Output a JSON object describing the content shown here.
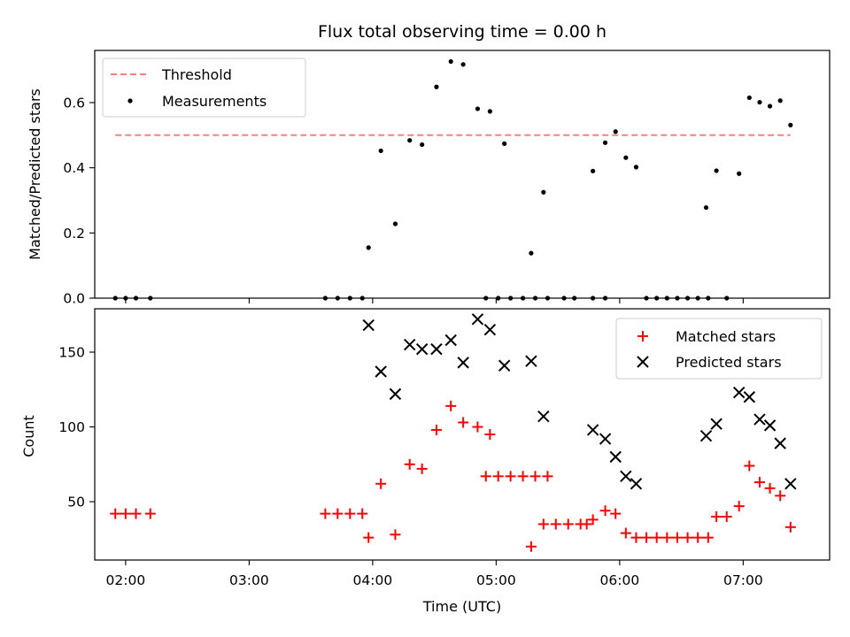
{
  "chart_data": [
    {
      "type": "scatter",
      "title": "Flux total observing time = 0.00 h",
      "xlabel": "",
      "ylabel": "Matched/Predicted stars",
      "ylim": [
        0,
        0.76
      ],
      "yticks": [
        "0.0",
        "0.2",
        "0.4",
        "0.6"
      ],
      "ytick_values": [
        0,
        0.2,
        0.4,
        0.6
      ],
      "xlim": [
        "01:45",
        "07:42"
      ],
      "threshold": {
        "name": "Threshold",
        "value": 0.5,
        "x": [
          "01:55",
          "07:23"
        ],
        "color": "#ff7f7f",
        "style": "dashed"
      },
      "series": [
        {
          "name": "Measurements",
          "color": "#000000",
          "marker": "dot",
          "points": [
            [
              "01:55",
              0
            ],
            [
              "02:00",
              0
            ],
            [
              "02:05",
              0
            ],
            [
              "02:12",
              0
            ],
            [
              "03:37",
              0
            ],
            [
              "03:43",
              0
            ],
            [
              "03:49",
              0
            ],
            [
              "03:55",
              0
            ],
            [
              "03:58",
              0.155
            ],
            [
              "04:04",
              0.452
            ],
            [
              "04:11",
              0.228
            ],
            [
              "04:18",
              0.484
            ],
            [
              "04:24",
              0.471
            ],
            [
              "04:31",
              0.648
            ],
            [
              "04:38",
              0.726
            ],
            [
              "04:44",
              0.717
            ],
            [
              "04:51",
              0.581
            ],
            [
              "04:57",
              0.573
            ],
            [
              "05:04",
              0.474
            ],
            [
              "04:55",
              0
            ],
            [
              "05:01",
              0
            ],
            [
              "05:07",
              0
            ],
            [
              "05:13",
              0
            ],
            [
              "05:19",
              0
            ],
            [
              "05:25",
              0
            ],
            [
              "05:17",
              0.138
            ],
            [
              "05:23",
              0.325
            ],
            [
              "05:33",
              0
            ],
            [
              "05:38",
              0
            ],
            [
              "05:47",
              0
            ],
            [
              "05:53",
              0
            ],
            [
              "05:47",
              0.39
            ],
            [
              "05:53",
              0.477
            ],
            [
              "05:58",
              0.511
            ],
            [
              "06:03",
              0.431
            ],
            [
              "06:08",
              0.402
            ],
            [
              "06:13",
              0
            ],
            [
              "06:18",
              0
            ],
            [
              "06:23",
              0
            ],
            [
              "06:28",
              0
            ],
            [
              "06:33",
              0
            ],
            [
              "06:38",
              0
            ],
            [
              "06:43",
              0
            ],
            [
              "06:42",
              0.278
            ],
            [
              "06:47",
              0.391
            ],
            [
              "06:52",
              0
            ],
            [
              "06:58",
              0.382
            ],
            [
              "07:03",
              0.615
            ],
            [
              "07:08",
              0.601
            ],
            [
              "07:13",
              0.589
            ],
            [
              "07:18",
              0.606
            ],
            [
              "07:23",
              0.531
            ]
          ]
        }
      ],
      "legend": "upper-left"
    },
    {
      "type": "scatter",
      "title": "",
      "xlabel": "Time (UTC)",
      "ylabel": "Count",
      "ylim": [
        11,
        179
      ],
      "yticks": [
        "50",
        "100",
        "150"
      ],
      "ytick_values": [
        50,
        100,
        150
      ],
      "xlim": [
        "01:45",
        "07:42"
      ],
      "xticks": [
        "02:00",
        "03:00",
        "04:00",
        "05:00",
        "06:00",
        "07:00"
      ],
      "series": [
        {
          "name": "Matched stars",
          "color": "#ff0000",
          "marker": "plus",
          "points": [
            [
              "01:55",
              42
            ],
            [
              "02:00",
              42
            ],
            [
              "02:05",
              42
            ],
            [
              "02:12",
              42
            ],
            [
              "03:37",
              42
            ],
            [
              "03:43",
              42
            ],
            [
              "03:49",
              42
            ],
            [
              "03:55",
              42
            ],
            [
              "03:58",
              26
            ],
            [
              "04:04",
              62
            ],
            [
              "04:11",
              28
            ],
            [
              "04:18",
              75
            ],
            [
              "04:24",
              72
            ],
            [
              "04:31",
              98
            ],
            [
              "04:38",
              114
            ],
            [
              "04:44",
              103
            ],
            [
              "04:51",
              100
            ],
            [
              "04:57",
              95
            ],
            [
              "04:55",
              67
            ],
            [
              "05:01",
              67
            ],
            [
              "05:07",
              67
            ],
            [
              "05:13",
              67
            ],
            [
              "05:19",
              67
            ],
            [
              "05:25",
              67
            ],
            [
              "05:17",
              20
            ],
            [
              "05:23",
              35
            ],
            [
              "05:29",
              35
            ],
            [
              "05:35",
              35
            ],
            [
              "05:41",
              35
            ],
            [
              "05:44",
              35
            ],
            [
              "05:47",
              38
            ],
            [
              "05:53",
              44
            ],
            [
              "05:58",
              42
            ],
            [
              "06:03",
              29
            ],
            [
              "06:08",
              26
            ],
            [
              "06:13",
              26
            ],
            [
              "06:18",
              26
            ],
            [
              "06:23",
              26
            ],
            [
              "06:28",
              26
            ],
            [
              "06:33",
              26
            ],
            [
              "06:38",
              26
            ],
            [
              "06:43",
              26
            ],
            [
              "06:47",
              40
            ],
            [
              "06:52",
              40
            ],
            [
              "06:58",
              47
            ],
            [
              "07:03",
              74
            ],
            [
              "07:08",
              63
            ],
            [
              "07:13",
              59
            ],
            [
              "07:18",
              54
            ],
            [
              "07:23",
              33
            ]
          ]
        },
        {
          "name": "Predicted stars",
          "color": "#000000",
          "marker": "x",
          "points": [
            [
              "03:58",
              168
            ],
            [
              "04:04",
              137
            ],
            [
              "04:11",
              122
            ],
            [
              "04:18",
              155
            ],
            [
              "04:24",
              152
            ],
            [
              "04:31",
              152
            ],
            [
              "04:38",
              158
            ],
            [
              "04:44",
              143
            ],
            [
              "04:51",
              172
            ],
            [
              "04:57",
              165
            ],
            [
              "05:04",
              141
            ],
            [
              "05:17",
              144
            ],
            [
              "05:23",
              107
            ],
            [
              "05:47",
              98
            ],
            [
              "05:53",
              92
            ],
            [
              "05:58",
              80
            ],
            [
              "06:03",
              67
            ],
            [
              "06:08",
              62
            ],
            [
              "06:42",
              94
            ],
            [
              "06:47",
              102
            ],
            [
              "06:58",
              123
            ],
            [
              "07:03",
              120
            ],
            [
              "07:08",
              105
            ],
            [
              "07:13",
              101
            ],
            [
              "07:18",
              89
            ],
            [
              "07:23",
              62
            ]
          ]
        }
      ],
      "legend": "upper-right"
    }
  ]
}
